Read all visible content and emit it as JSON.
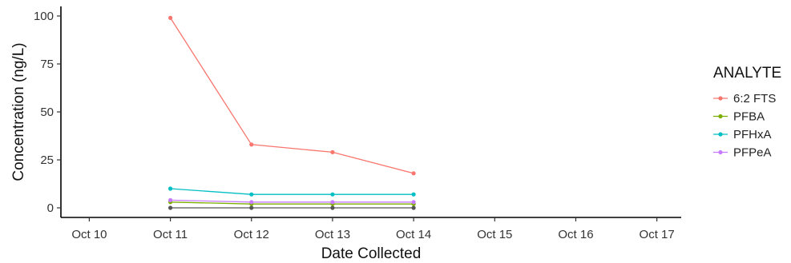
{
  "chart_data": {
    "type": "line",
    "xlabel": "Date Collected",
    "ylabel": "Concentration (ng/L)",
    "x_categories": [
      "Oct 10",
      "Oct 11",
      "Oct 12",
      "Oct 13",
      "Oct 14",
      "Oct 15",
      "Oct 16",
      "Oct 17"
    ],
    "x_values_days": [
      10,
      11,
      12,
      13,
      14,
      15,
      16,
      17
    ],
    "xlim": [
      9.65,
      17.3
    ],
    "yticks": [
      0,
      25,
      50,
      75,
      100
    ],
    "ylim": [
      -5,
      105
    ],
    "grid": false,
    "legend": {
      "title": "ANALYTE",
      "placement": "right"
    },
    "series": [
      {
        "name": "",
        "color": "#555555",
        "x": [
          "Oct 11",
          "Oct 12",
          "Oct 13",
          "Oct 14"
        ],
        "y": [
          0,
          0,
          0,
          0
        ]
      },
      {
        "name": "6:2 FTS",
        "color": "#F8766D",
        "x": [
          "Oct 11",
          "Oct 12",
          "Oct 13",
          "Oct 14"
        ],
        "y": [
          99,
          33,
          29,
          18
        ]
      },
      {
        "name": "PFBA",
        "color": "#7CAE00",
        "x": [
          "Oct 11",
          "Oct 12",
          "Oct 13",
          "Oct 14"
        ],
        "y": [
          3,
          2,
          2,
          2
        ]
      },
      {
        "name": "PFHxA",
        "color": "#00BFC4",
        "x": [
          "Oct 11",
          "Oct 12",
          "Oct 13",
          "Oct 14"
        ],
        "y": [
          10,
          7,
          7,
          7
        ]
      },
      {
        "name": "PFPeA",
        "color": "#C77CFF",
        "x": [
          "Oct 11",
          "Oct 12",
          "Oct 13",
          "Oct 14"
        ],
        "y": [
          4,
          3,
          3,
          3
        ]
      }
    ]
  }
}
